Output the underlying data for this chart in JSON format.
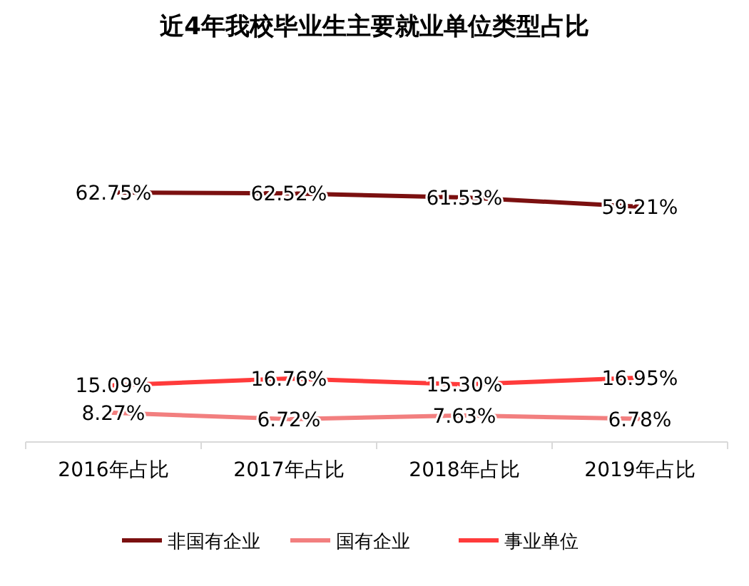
{
  "chart_data": {
    "type": "line",
    "title": "近4年我校毕业生主要就业单位类型占比",
    "categories": [
      "2016年占比",
      "2017年占比",
      "2018年占比",
      "2019年占比"
    ],
    "series": [
      {
        "name": "非国有企业",
        "color": "#7b1010",
        "values": [
          62.75,
          62.52,
          61.53,
          59.21
        ],
        "value_labels": [
          "62.75%",
          "62.52%",
          "61.53%",
          "59.21%"
        ]
      },
      {
        "name": "国有企业",
        "color": "#f27f7f",
        "values": [
          8.27,
          6.72,
          7.63,
          6.78
        ],
        "value_labels": [
          "8.27%",
          "6.72%",
          "7.63%",
          "6.78%"
        ]
      },
      {
        "name": "事业单位",
        "color": "#ff3b3b",
        "values": [
          15.09,
          16.76,
          15.3,
          16.95
        ],
        "value_labels": [
          "15.09%",
          "16.76%",
          "15.30%",
          "16.95%"
        ]
      }
    ],
    "legend": "bottom",
    "grid": false,
    "marker": "none",
    "line_style": "solid"
  }
}
